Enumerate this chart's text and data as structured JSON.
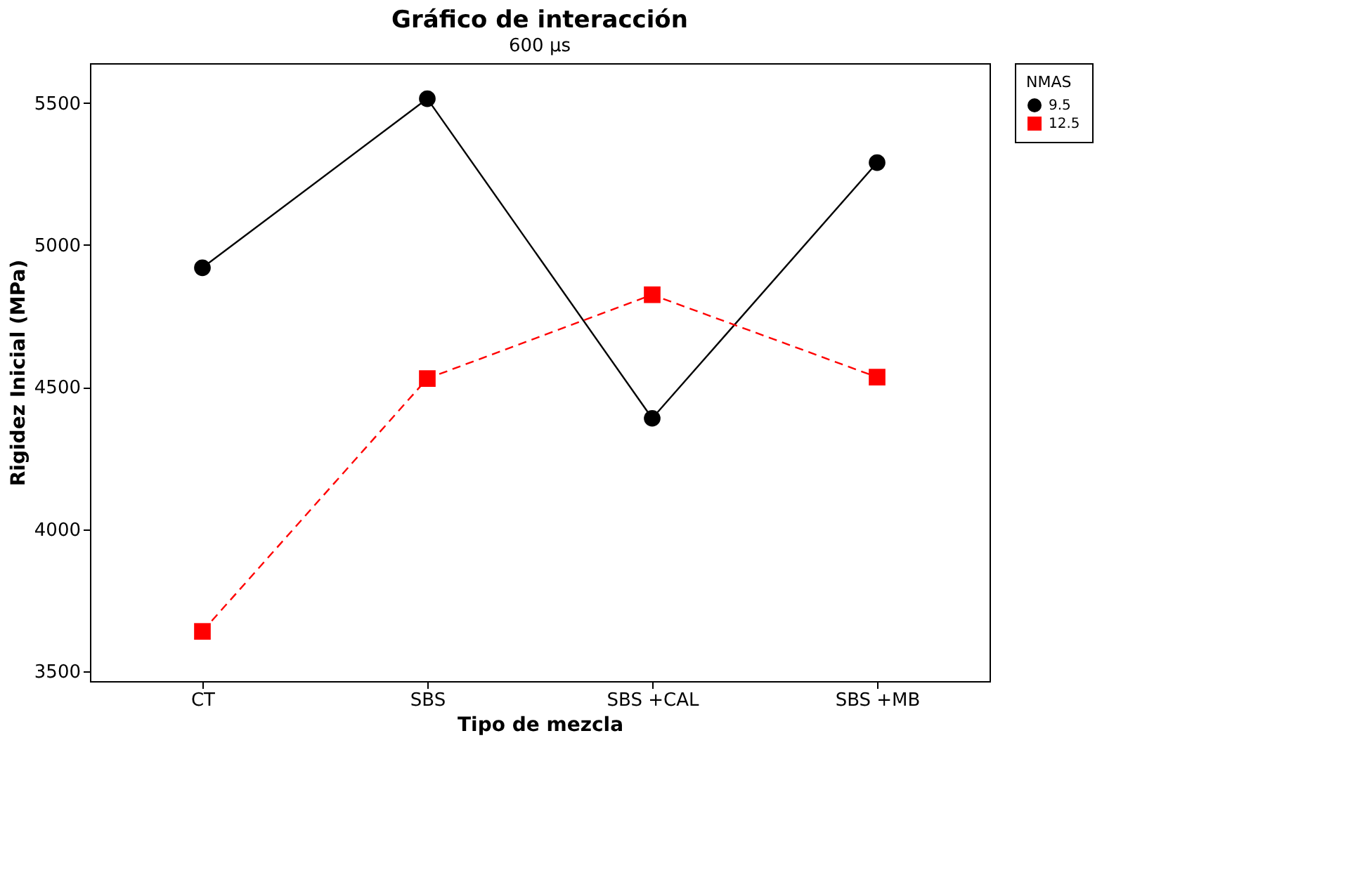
{
  "chart_data": {
    "type": "line",
    "title": "Gráfico de interacción",
    "subtitle": "600 µs",
    "xlabel": "Tipo de mezcla",
    "ylabel": "Rigidez Inicial (MPa)",
    "legend_title": "NMAS",
    "categories": [
      "CT",
      "SBS",
      "SBS +CAL",
      "SBS +MB"
    ],
    "series": [
      {
        "name": "9.5",
        "color": "#000000",
        "values": [
          4920,
          5515,
          4390,
          5290
        ],
        "marker": "circle",
        "line_style": "solid"
      },
      {
        "name": "12.5",
        "color": "#ff0000",
        "values": [
          3640,
          4530,
          4825,
          4535
        ],
        "marker": "square",
        "line_style": "dashed"
      }
    ],
    "ylim": [
      3465,
      5640
    ],
    "yticks": [
      3500,
      4000,
      4500,
      5000,
      5500
    ],
    "grid": false,
    "legend": "top right"
  }
}
